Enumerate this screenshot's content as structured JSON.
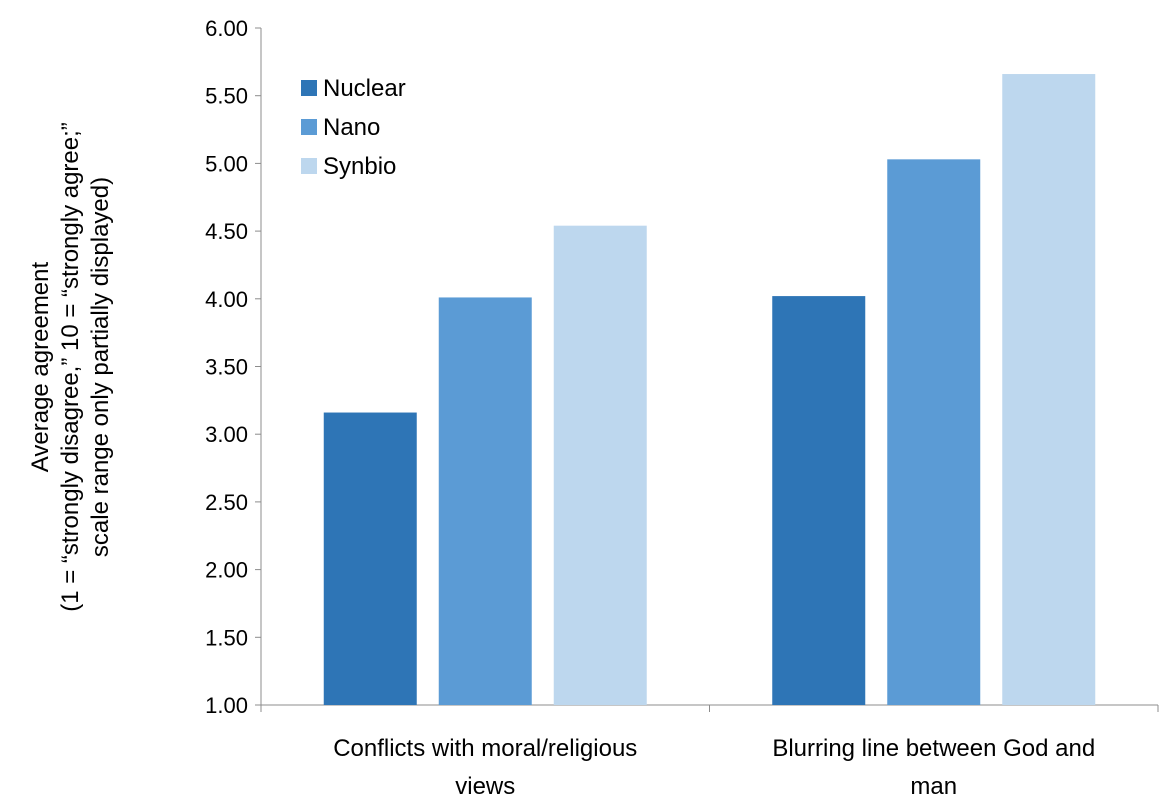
{
  "chart_data": {
    "type": "bar",
    "categories": [
      [
        "Conflicts with  moral/religious",
        "views"
      ],
      [
        "Blurring line between God and",
        "man"
      ]
    ],
    "series": [
      {
        "name": "Nuclear",
        "color": "#2E75B6",
        "values": [
          3.16,
          4.02
        ]
      },
      {
        "name": "Nano",
        "color": "#5B9BD5",
        "values": [
          4.01,
          5.03
        ]
      },
      {
        "name": "Synbio",
        "color": "#BDD7EE",
        "values": [
          4.54,
          5.66
        ]
      }
    ],
    "ylabel": [
      "Average agreement",
      "(1 = “strongly disagree,” 10 = “strongly agree;”",
      "scale range only partially displayed)"
    ],
    "ylim": [
      1.0,
      6.0
    ],
    "yticks": [
      "1.00",
      "1.50",
      "2.00",
      "2.50",
      "3.00",
      "3.50",
      "4.00",
      "4.50",
      "5.00",
      "5.50",
      "6.00"
    ],
    "ytick_values": [
      1.0,
      1.5,
      2.0,
      2.5,
      3.0,
      3.5,
      4.0,
      4.5,
      5.0,
      5.5,
      6.0
    ],
    "grid": false,
    "legend_position": "top-left"
  }
}
